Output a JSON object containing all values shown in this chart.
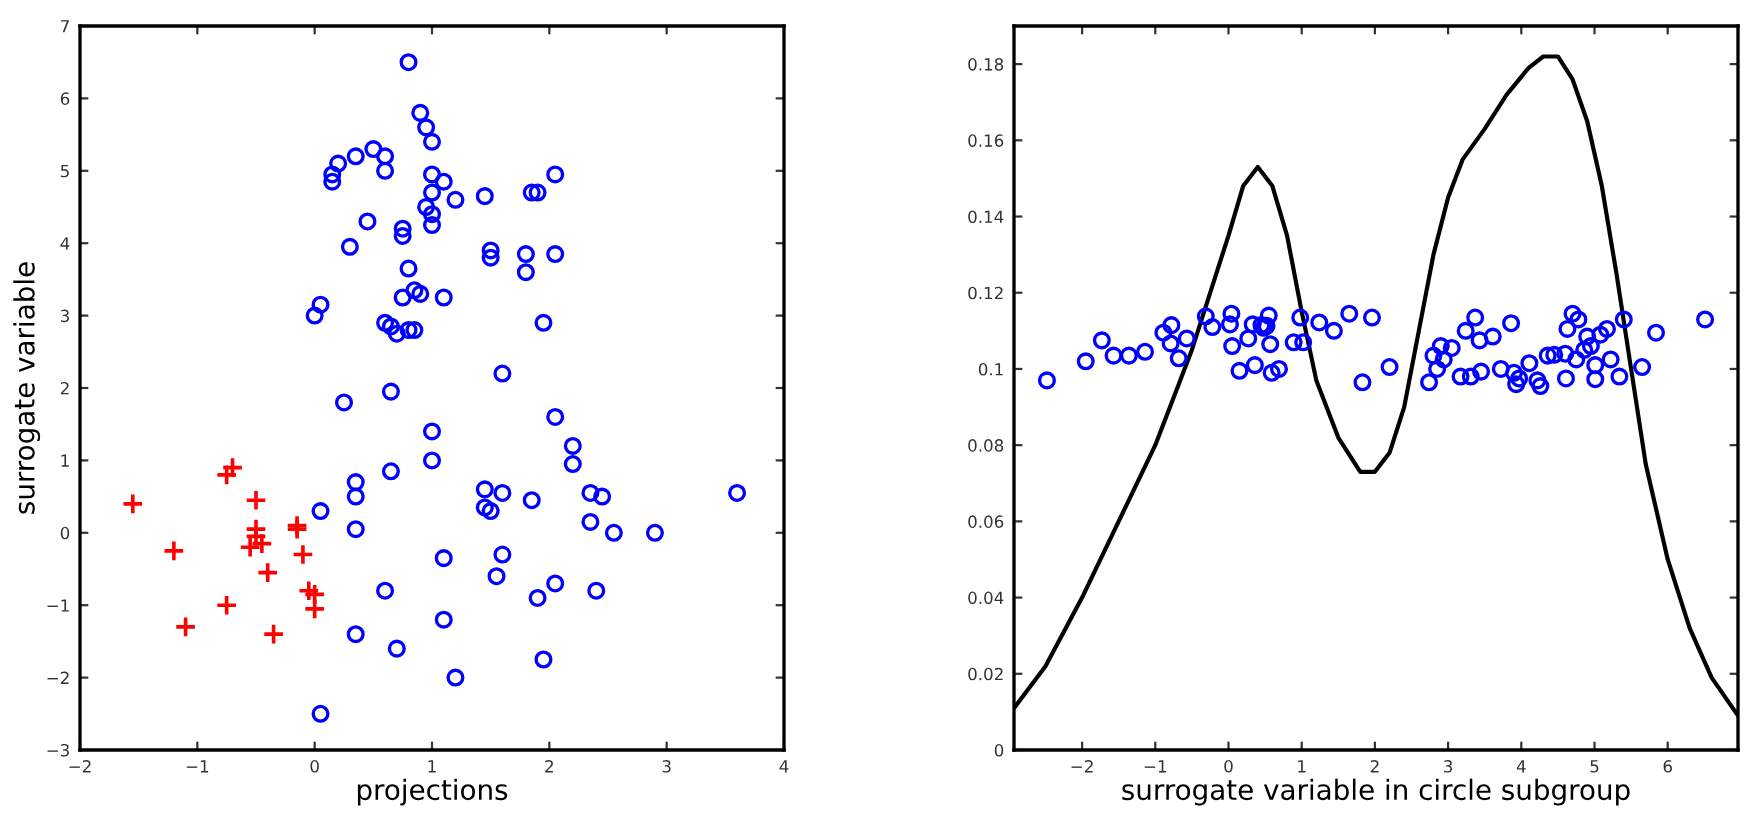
{
  "chart_data": [
    {
      "type": "scatter",
      "xlabel": "projections",
      "ylabel": "surrogate variable",
      "xlim": [
        -2,
        4
      ],
      "ylim": [
        -3,
        7
      ],
      "xticks": [
        -2,
        -1,
        0,
        1,
        2,
        3,
        4
      ],
      "yticks": [
        -3,
        -2,
        -1,
        0,
        1,
        2,
        3,
        4,
        5,
        6,
        7
      ],
      "grid": false,
      "legend": false,
      "series": [
        {
          "color": "#0000ff",
          "marker": "circle",
          "x": [
            0.8,
            0.9,
            0.95,
            1.0,
            0.5,
            0.35,
            0.2,
            0.15,
            0.15,
            0.6,
            0.6,
            1.0,
            1.1,
            1.2,
            1.0,
            0.95,
            1.0,
            1.0,
            0.45,
            0.75,
            0.75,
            1.45,
            1.85,
            1.9,
            2.05,
            0.3,
            1.5,
            1.5,
            1.8,
            1.8,
            2.05,
            0.8,
            0.6,
            0.65,
            0.7,
            0.85,
            0.8,
            0.85,
            0.9,
            0.75,
            1.1,
            1.95,
            0.05,
            0.0,
            1.6,
            0.65,
            0.25,
            0.65,
            1.0,
            2.05,
            2.2,
            2.2,
            0.35,
            0.35,
            1.0,
            0.05,
            0.35,
            1.45,
            1.45,
            1.6,
            1.5,
            1.85,
            2.35,
            2.45,
            2.35,
            2.55,
            2.9,
            3.6,
            1.1,
            1.6,
            1.55,
            0.6,
            2.05,
            1.9,
            2.4,
            1.1,
            0.35,
            0.7,
            1.95,
            1.2,
            0.05
          ],
          "values": [
            6.5,
            5.8,
            5.6,
            5.4,
            5.3,
            5.2,
            5.1,
            4.95,
            4.85,
            5.2,
            5.0,
            4.95,
            4.85,
            4.6,
            4.7,
            4.5,
            4.4,
            4.25,
            4.3,
            4.1,
            4.2,
            4.65,
            4.7,
            4.7,
            4.95,
            3.95,
            3.9,
            3.8,
            3.85,
            3.6,
            3.85,
            3.65,
            2.9,
            2.85,
            2.75,
            2.8,
            2.8,
            3.35,
            3.3,
            3.25,
            3.25,
            2.9,
            3.15,
            3.0,
            2.2,
            1.95,
            1.8,
            0.85,
            1.4,
            1.6,
            1.2,
            0.95,
            0.7,
            0.5,
            1.0,
            0.3,
            0.05,
            0.6,
            0.35,
            0.55,
            0.3,
            0.45,
            0.55,
            0.5,
            0.15,
            0.0,
            0.0,
            0.55,
            -0.35,
            -0.3,
            -0.6,
            -0.8,
            -0.7,
            -0.9,
            -0.8,
            -1.2,
            -1.4,
            -1.6,
            -1.75,
            -2.0,
            -2.5
          ]
        },
        {
          "color": "#ff0000",
          "marker": "cross",
          "x": [
            -1.55,
            -0.7,
            -0.75,
            -0.5,
            -1.2,
            -0.5,
            -0.5,
            -0.55,
            -0.45,
            -0.15,
            -0.15,
            -0.1,
            -0.4,
            -0.05,
            0.0,
            0.0,
            -0.75,
            -1.1,
            -0.35
          ],
          "values": [
            0.4,
            0.9,
            0.8,
            0.45,
            -0.25,
            -0.05,
            0.05,
            -0.2,
            -0.15,
            0.1,
            0.05,
            -0.3,
            -0.55,
            -0.8,
            -0.85,
            -1.05,
            -1.0,
            -1.3,
            -1.4
          ]
        }
      ]
    },
    {
      "type": "scatter",
      "xlabel": "surrogate variable in circle subgroup",
      "xlim": [
        -2.93,
        6.96
      ],
      "ylim": [
        0,
        0.19
      ],
      "xticks": [
        -2,
        -1,
        0,
        1,
        2,
        3,
        4,
        5,
        6
      ],
      "yticks": [
        0,
        0.02,
        0.04,
        0.06,
        0.08,
        0.1,
        0.12,
        0.14,
        0.16,
        0.18
      ],
      "grid": false,
      "legend": false,
      "series": [
        {
          "type": "line",
          "color": "#000000",
          "marker": "none",
          "line_style": "solid",
          "x": [
            -2.93,
            -2.5,
            -2,
            -1.5,
            -1,
            -0.5,
            0,
            0.2,
            0.4,
            0.6,
            0.8,
            1.0,
            1.2,
            1.5,
            1.8,
            2.0,
            2.2,
            2.4,
            2.6,
            2.8,
            3.0,
            3.2,
            3.5,
            3.8,
            4.1,
            4.3,
            4.5,
            4.7,
            4.9,
            5.1,
            5.3,
            5.5,
            5.7,
            6.0,
            6.3,
            6.6,
            6.96
          ],
          "values": [
            0.011,
            0.022,
            0.04,
            0.06,
            0.08,
            0.105,
            0.135,
            0.148,
            0.153,
            0.148,
            0.135,
            0.115,
            0.097,
            0.082,
            0.073,
            0.073,
            0.078,
            0.09,
            0.11,
            0.13,
            0.145,
            0.155,
            0.163,
            0.172,
            0.179,
            0.182,
            0.182,
            0.176,
            0.165,
            0.148,
            0.125,
            0.1,
            0.075,
            0.05,
            0.032,
            0.019,
            0.009
          ]
        },
        {
          "type": "scatter",
          "color": "#0000ff",
          "marker": "circle",
          "x": [
            -2.48,
            -1.95,
            -1.73,
            -1.57,
            -1.36,
            -1.14,
            -0.89,
            -0.78,
            -0.79,
            -0.68,
            -0.57,
            -0.31,
            -0.22,
            0.02,
            0.04,
            0.05,
            0.15,
            0.27,
            0.33,
            0.36,
            0.45,
            0.48,
            0.52,
            0.55,
            0.57,
            0.59,
            0.69,
            0.89,
            1.02,
            0.98,
            1.24,
            1.44,
            1.65,
            1.83,
            1.96,
            2.2,
            2.74,
            2.8,
            2.85,
            2.9,
            2.94,
            3.05,
            3.17,
            3.24,
            3.31,
            3.37,
            3.43,
            3.45,
            3.61,
            3.72,
            3.86,
            3.9,
            3.93,
            3.97,
            4.11,
            4.22,
            4.26,
            4.36,
            4.45,
            4.6,
            4.61,
            4.63,
            4.7,
            4.75,
            4.78,
            4.86,
            4.9,
            4.95,
            5.01,
            5.01,
            5.08,
            5.17,
            5.22,
            5.34,
            5.4,
            5.65,
            5.84,
            6.51
          ],
          "values": [
            0.097,
            0.102,
            0.1075,
            0.1035,
            0.1035,
            0.1045,
            0.1095,
            0.1115,
            0.1067,
            0.1028,
            0.108,
            0.1138,
            0.111,
            0.1117,
            0.1145,
            0.106,
            0.0995,
            0.108,
            0.1117,
            0.101,
            0.1115,
            0.1108,
            0.1113,
            0.114,
            0.1065,
            0.099,
            0.1,
            0.107,
            0.107,
            0.1135,
            0.1122,
            0.11,
            0.1145,
            0.0965,
            0.1135,
            0.1005,
            0.0965,
            0.1035,
            0.1,
            0.106,
            0.1025,
            0.1055,
            0.098,
            0.11,
            0.098,
            0.1135,
            0.1075,
            0.0993,
            0.1085,
            0.1,
            0.112,
            0.099,
            0.096,
            0.0975,
            0.1015,
            0.097,
            0.0955,
            0.1035,
            0.1037,
            0.104,
            0.0975,
            0.1105,
            0.1145,
            0.1025,
            0.113,
            0.105,
            0.1085,
            0.106,
            0.0973,
            0.101,
            0.109,
            0.1105,
            0.1025,
            0.098,
            0.113,
            0.1005,
            0.1095,
            0.113
          ]
        }
      ]
    }
  ]
}
